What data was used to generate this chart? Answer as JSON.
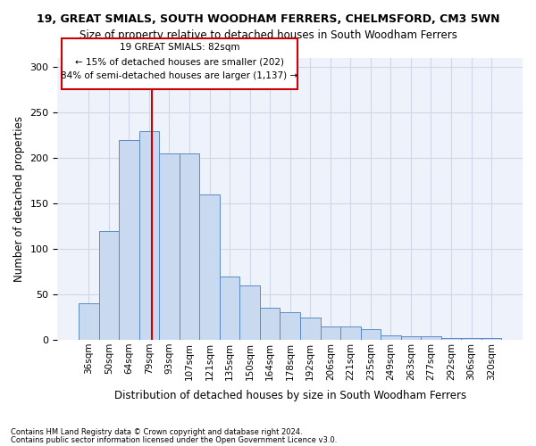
{
  "title": "19, GREAT SMIALS, SOUTH WOODHAM FERRERS, CHELMSFORD, CM3 5WN",
  "subtitle": "Size of property relative to detached houses in South Woodham Ferrers",
  "xlabel": "Distribution of detached houses by size in South Woodham Ferrers",
  "ylabel": "Number of detached properties",
  "footnote1": "Contains HM Land Registry data © Crown copyright and database right 2024.",
  "footnote2": "Contains public sector information licensed under the Open Government Licence v3.0.",
  "annotation_line1": "19 GREAT SMIALS: 82sqm",
  "annotation_line2": "← 15% of detached houses are smaller (202)",
  "annotation_line3": "84% of semi-detached houses are larger (1,137) →",
  "bar_color": "#c9d9f0",
  "bar_edge_color": "#5a8ac6",
  "vline_color": "#cc0000",
  "annotation_box_edge": "#cc0000",
  "grid_color": "#d0d8e8",
  "bg_color": "#eef2fa",
  "categories": [
    "36sqm",
    "50sqm",
    "64sqm",
    "79sqm",
    "93sqm",
    "107sqm",
    "121sqm",
    "135sqm",
    "150sqm",
    "164sqm",
    "178sqm",
    "192sqm",
    "206sqm",
    "221sqm",
    "235sqm",
    "249sqm",
    "263sqm",
    "277sqm",
    "292sqm",
    "306sqm",
    "320sqm"
  ],
  "bar_values": [
    40,
    120,
    220,
    230,
    205,
    205,
    160,
    70,
    60,
    35,
    30,
    25,
    15,
    15,
    12,
    5,
    4,
    4,
    2,
    2,
    2
  ],
  "vline_x": 3.15,
  "ylim": [
    0,
    310
  ],
  "yticks": [
    0,
    50,
    100,
    150,
    200,
    250,
    300
  ]
}
